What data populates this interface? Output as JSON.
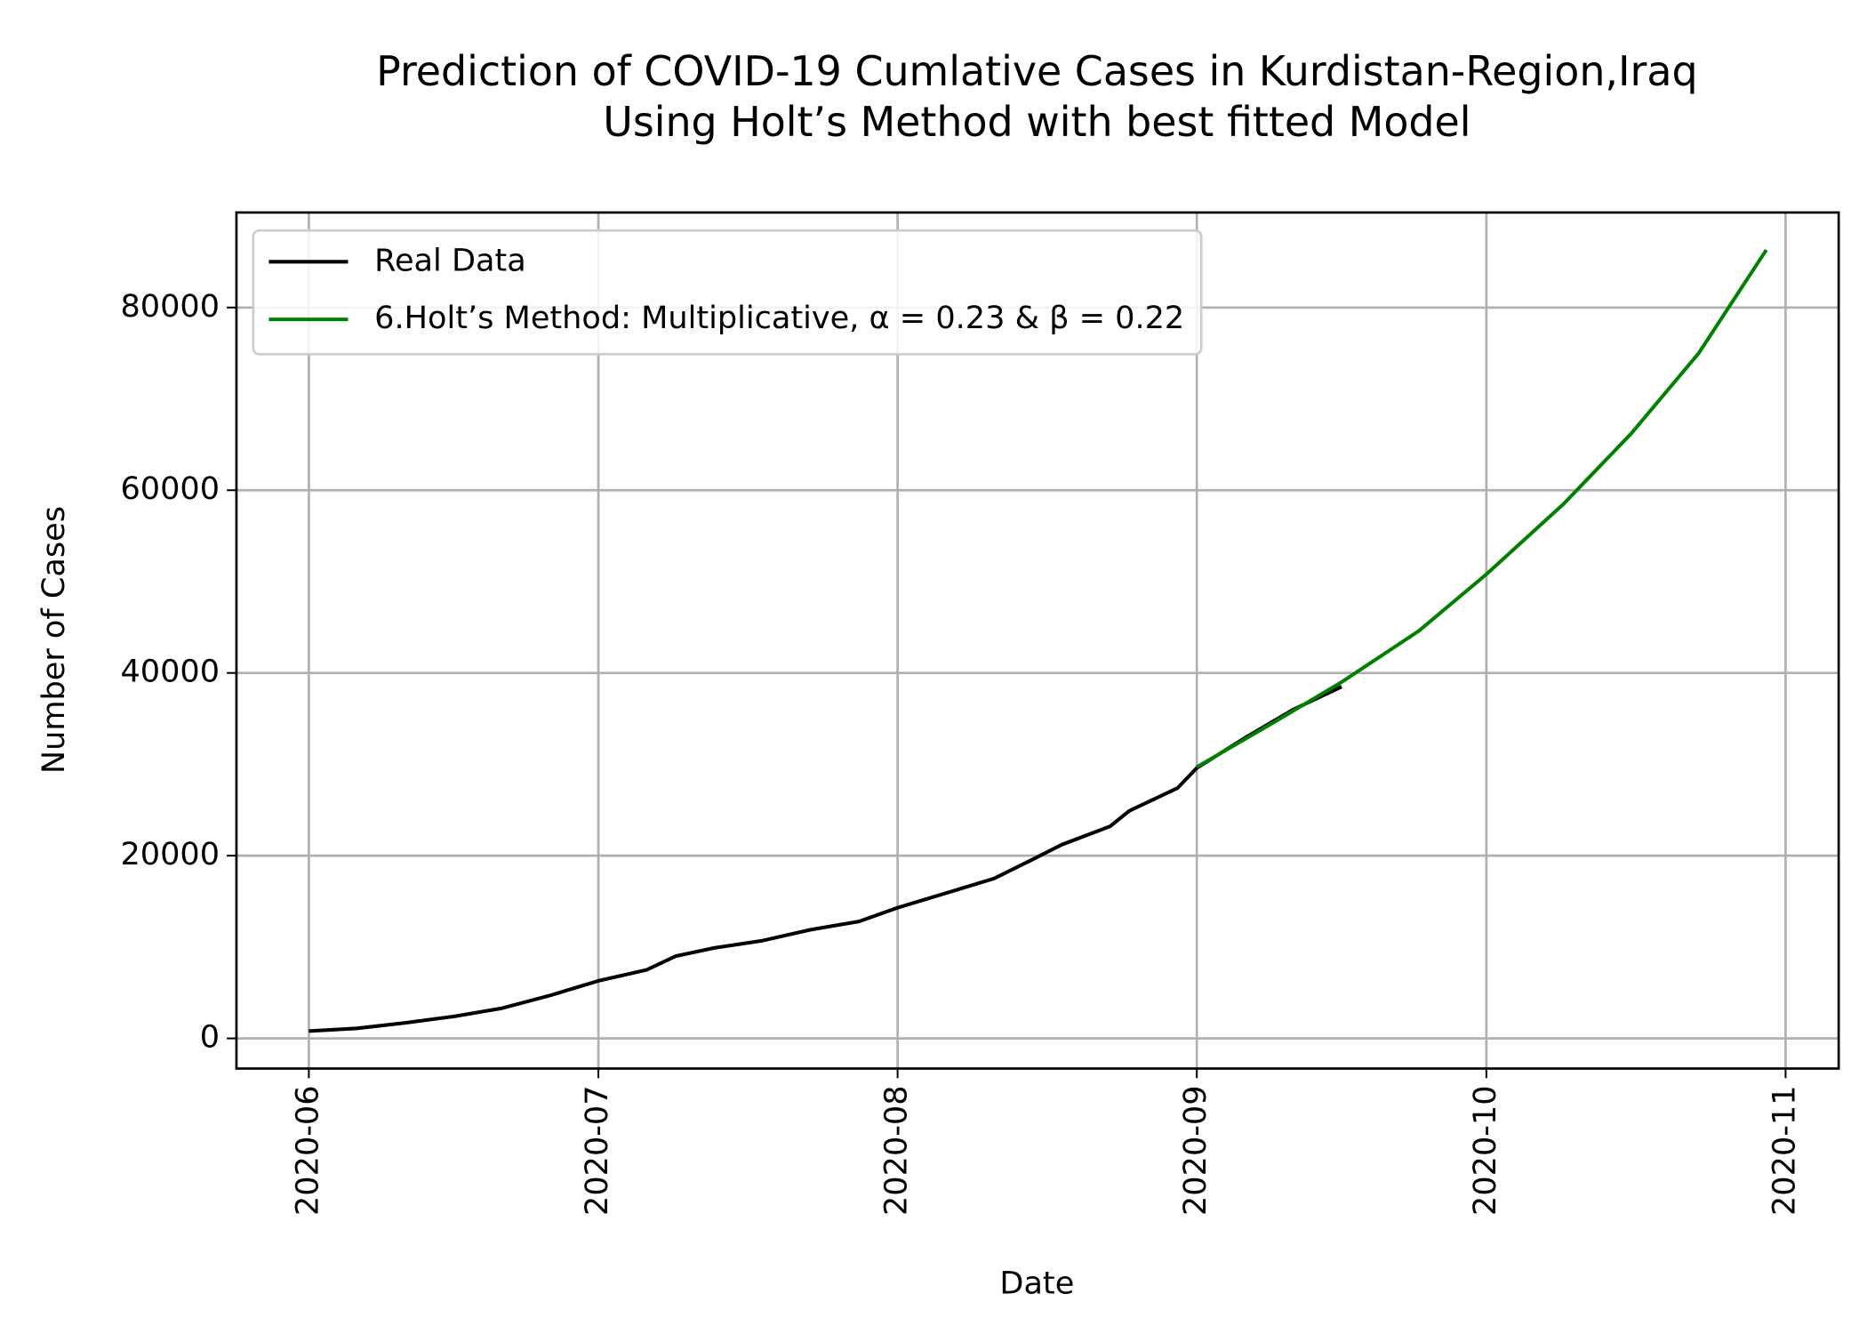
{
  "chart_data": {
    "type": "line",
    "title": [
      "Prediction of COVID-19 Cumlative Cases in Kurdistan-Region,Iraq",
      "Using Holt’s Method with best fitted Model"
    ],
    "x_label": "Date",
    "y_label": "Number of Cases",
    "xlim": [
      -7.5,
      158.5
    ],
    "xticks": [
      {
        "value": 0,
        "label": "2020-06"
      },
      {
        "value": 30,
        "label": "2020-07"
      },
      {
        "value": 61,
        "label": "2020-08"
      },
      {
        "value": 92,
        "label": "2020-09"
      },
      {
        "value": 122,
        "label": "2020-10"
      },
      {
        "value": 153,
        "label": "2020-11"
      }
    ],
    "ylim": [
      -3300,
      90400
    ],
    "yticks": [
      0,
      20000,
      40000,
      60000,
      80000
    ],
    "grid": true,
    "legend": "upper left",
    "series": [
      {
        "name": "Real Data",
        "color": "#000000",
        "x": [
          0,
          5,
          10,
          15,
          20,
          25,
          30,
          35,
          38,
          42,
          47,
          52,
          57,
          61,
          66,
          71,
          75,
          78,
          83,
          85,
          90,
          92,
          97,
          102,
          107
        ],
        "values": [
          800,
          1100,
          1700,
          2400,
          3300,
          4700,
          6300,
          7500,
          9000,
          9900,
          10700,
          11900,
          12800,
          14300,
          15900,
          17500,
          19600,
          21200,
          23200,
          24900,
          27400,
          29600,
          32900,
          36000,
          38500
        ]
      },
      {
        "name": "6.Holt’s Method: Multiplicative, α = 0.23  &  β = 0.22",
        "color": "#008000",
        "x": [
          92,
          100,
          107,
          115,
          122,
          130,
          137,
          144,
          151
        ],
        "values": [
          29700,
          34600,
          39000,
          44600,
          50800,
          58500,
          66200,
          75000,
          86300
        ]
      }
    ]
  }
}
